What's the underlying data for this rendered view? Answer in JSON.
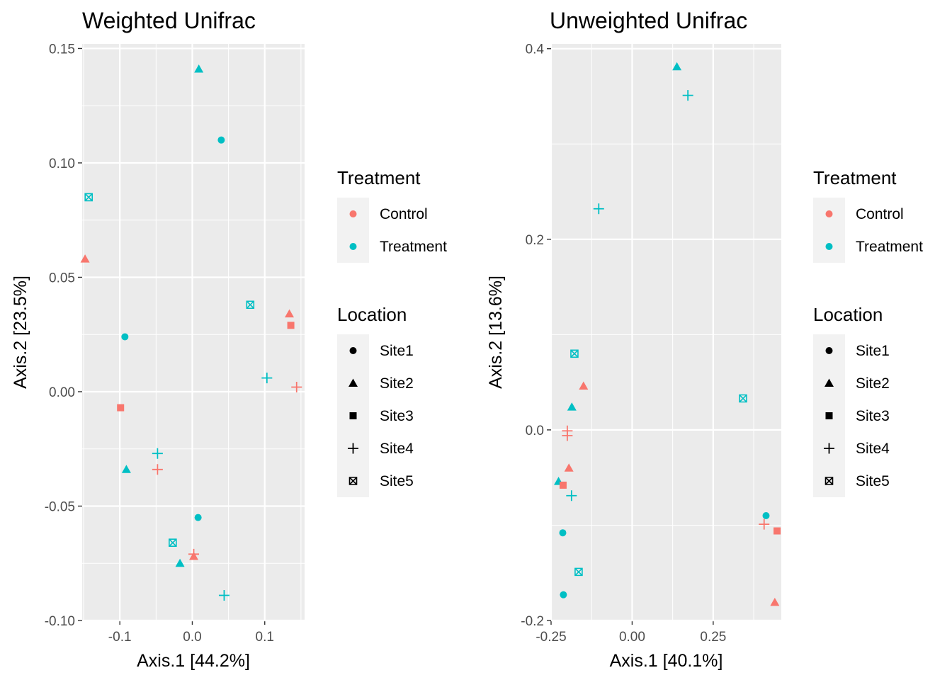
{
  "colors": {
    "Control": "#F8766D",
    "Treatment": "#00BFC4",
    "panel_bg": "#EBEBEB",
    "grid": "#FFFFFF",
    "legend_key_bg": "#F2F2F2",
    "tick_text": "#4D4D4D"
  },
  "legend": {
    "color_title": "Treatment",
    "color_items": [
      {
        "label": "Control",
        "group": "Control"
      },
      {
        "label": "Treatment",
        "group": "Treatment"
      }
    ],
    "shape_title": "Location",
    "shape_items": [
      {
        "label": "Site1",
        "shape": "circle"
      },
      {
        "label": "Site2",
        "shape": "triangle"
      },
      {
        "label": "Site3",
        "shape": "square"
      },
      {
        "label": "Site4",
        "shape": "plus"
      },
      {
        "label": "Site5",
        "shape": "boxx"
      }
    ]
  },
  "chart_data": [
    {
      "type": "scatter",
      "title": "Weighted Unifrac",
      "xlabel": "Axis.1   [44.2%]",
      "ylabel": "Axis.2   [23.5%]",
      "xlim": [
        -0.152,
        0.155
      ],
      "ylim": [
        -0.1,
        0.152
      ],
      "xticks": [
        -0.1,
        0.0,
        0.1
      ],
      "xtick_labels": [
        "-0.1",
        "0.0",
        "0.1"
      ],
      "yticks": [
        -0.1,
        -0.05,
        0.0,
        0.05,
        0.1,
        0.15
      ],
      "ytick_labels": [
        "-0.10",
        "-0.05",
        "0.00",
        "0.05",
        "0.10",
        "0.15"
      ],
      "grid": true,
      "points": [
        {
          "x": 0.009,
          "y": 0.141,
          "group": "Treatment",
          "shape": "triangle"
        },
        {
          "x": 0.04,
          "y": 0.11,
          "group": "Treatment",
          "shape": "circle"
        },
        {
          "x": -0.143,
          "y": 0.085,
          "group": "Treatment",
          "shape": "boxx"
        },
        {
          "x": -0.148,
          "y": 0.058,
          "group": "Control",
          "shape": "triangle"
        },
        {
          "x": 0.08,
          "y": 0.038,
          "group": "Treatment",
          "shape": "boxx"
        },
        {
          "x": 0.134,
          "y": 0.034,
          "group": "Control",
          "shape": "triangle"
        },
        {
          "x": 0.136,
          "y": 0.029,
          "group": "Control",
          "shape": "square"
        },
        {
          "x": -0.093,
          "y": 0.024,
          "group": "Treatment",
          "shape": "circle"
        },
        {
          "x": 0.103,
          "y": 0.006,
          "group": "Treatment",
          "shape": "plus"
        },
        {
          "x": 0.144,
          "y": 0.002,
          "group": "Control",
          "shape": "plus"
        },
        {
          "x": -0.099,
          "y": -0.007,
          "group": "Control",
          "shape": "square"
        },
        {
          "x": -0.048,
          "y": -0.027,
          "group": "Treatment",
          "shape": "plus"
        },
        {
          "x": -0.048,
          "y": -0.034,
          "group": "Control",
          "shape": "plus"
        },
        {
          "x": -0.091,
          "y": -0.034,
          "group": "Treatment",
          "shape": "triangle"
        },
        {
          "x": 0.008,
          "y": -0.055,
          "group": "Treatment",
          "shape": "circle"
        },
        {
          "x": -0.027,
          "y": -0.066,
          "group": "Treatment",
          "shape": "boxx"
        },
        {
          "x": 0.002,
          "y": -0.071,
          "group": "Control",
          "shape": "plus"
        },
        {
          "x": 0.002,
          "y": -0.072,
          "group": "Control",
          "shape": "triangle"
        },
        {
          "x": -0.017,
          "y": -0.075,
          "group": "Treatment",
          "shape": "triangle"
        },
        {
          "x": 0.044,
          "y": -0.089,
          "group": "Treatment",
          "shape": "plus"
        }
      ]
    },
    {
      "type": "scatter",
      "title": "Unweighted Unifrac",
      "xlabel": "Axis.1   [40.1%]",
      "ylabel": "Axis.2   [13.6%]",
      "xlim": [
        -0.25,
        0.46
      ],
      "ylim": [
        -0.2,
        0.405
      ],
      "xticks": [
        -0.25,
        0.0,
        0.25
      ],
      "xtick_labels": [
        "-0.25",
        "0.00",
        "0.25"
      ],
      "yticks": [
        -0.2,
        0.0,
        0.2,
        0.4
      ],
      "ytick_labels": [
        "-0.2",
        "0.0",
        "0.2",
        "0.4"
      ],
      "grid": true,
      "points": [
        {
          "x": 0.138,
          "y": 0.381,
          "group": "Treatment",
          "shape": "triangle"
        },
        {
          "x": 0.172,
          "y": 0.351,
          "group": "Treatment",
          "shape": "plus"
        },
        {
          "x": -0.103,
          "y": 0.232,
          "group": "Treatment",
          "shape": "plus"
        },
        {
          "x": -0.178,
          "y": 0.08,
          "group": "Treatment",
          "shape": "boxx"
        },
        {
          "x": -0.15,
          "y": 0.046,
          "group": "Control",
          "shape": "triangle"
        },
        {
          "x": 0.342,
          "y": 0.033,
          "group": "Treatment",
          "shape": "boxx"
        },
        {
          "x": -0.186,
          "y": 0.024,
          "group": "Treatment",
          "shape": "triangle"
        },
        {
          "x": -0.2,
          "y": -0.001,
          "group": "Control",
          "shape": "plus"
        },
        {
          "x": -0.2,
          "y": -0.006,
          "group": "Control",
          "shape": "plus"
        },
        {
          "x": -0.195,
          "y": -0.04,
          "group": "Control",
          "shape": "triangle"
        },
        {
          "x": -0.227,
          "y": -0.054,
          "group": "Treatment",
          "shape": "triangle"
        },
        {
          "x": -0.213,
          "y": -0.058,
          "group": "Control",
          "shape": "square"
        },
        {
          "x": -0.187,
          "y": -0.069,
          "group": "Treatment",
          "shape": "plus"
        },
        {
          "x": 0.413,
          "y": -0.09,
          "group": "Treatment",
          "shape": "circle"
        },
        {
          "x": 0.407,
          "y": -0.099,
          "group": "Control",
          "shape": "plus"
        },
        {
          "x": 0.447,
          "y": -0.106,
          "group": "Control",
          "shape": "square"
        },
        {
          "x": -0.214,
          "y": -0.108,
          "group": "Treatment",
          "shape": "circle"
        },
        {
          "x": -0.165,
          "y": -0.149,
          "group": "Treatment",
          "shape": "boxx"
        },
        {
          "x": -0.212,
          "y": -0.173,
          "group": "Treatment",
          "shape": "circle"
        },
        {
          "x": 0.44,
          "y": -0.181,
          "group": "Control",
          "shape": "triangle"
        }
      ]
    }
  ]
}
